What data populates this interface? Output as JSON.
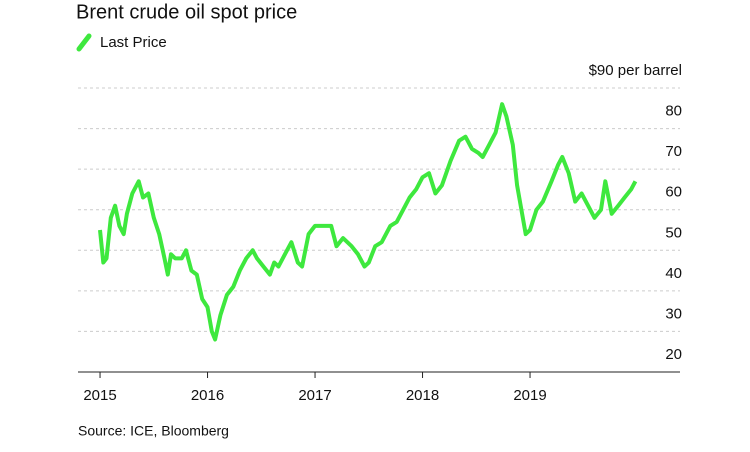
{
  "chart_data": {
    "type": "line",
    "title": "Brent crude oil spot price",
    "source": "Source: ICE, Bloomberg",
    "series": [
      {
        "name": "Last Price",
        "color": "#3ee83e",
        "x": [
          2015.0,
          2015.03,
          2015.06,
          2015.1,
          2015.14,
          2015.18,
          2015.22,
          2015.25,
          2015.3,
          2015.36,
          2015.4,
          2015.45,
          2015.5,
          2015.55,
          2015.6,
          2015.63,
          2015.66,
          2015.7,
          2015.76,
          2015.8,
          2015.85,
          2015.9,
          2015.95,
          2016.0,
          2016.04,
          2016.07,
          2016.12,
          2016.18,
          2016.24,
          2016.3,
          2016.36,
          2016.42,
          2016.46,
          2016.52,
          2016.58,
          2016.62,
          2016.66,
          2016.72,
          2016.78,
          2016.84,
          2016.88,
          2016.94,
          2017.0,
          2017.08,
          2017.15,
          2017.2,
          2017.26,
          2017.34,
          2017.4,
          2017.46,
          2017.5,
          2017.56,
          2017.62,
          2017.7,
          2017.76,
          2017.82,
          2017.88,
          2017.94,
          2018.0,
          2018.06,
          2018.12,
          2018.18,
          2018.26,
          2018.34,
          2018.4,
          2018.46,
          2018.52,
          2018.56,
          2018.62,
          2018.68,
          2018.74,
          2018.78,
          2018.84,
          2018.88,
          2018.92,
          2018.96,
          2019.0,
          2019.06,
          2019.12,
          2019.2,
          2019.26,
          2019.3,
          2019.36,
          2019.42,
          2019.48,
          2019.54,
          2019.6,
          2019.66,
          2019.7,
          2019.76,
          2019.82,
          2019.88,
          2019.94,
          2019.98
        ],
        "values": [
          55,
          47,
          48,
          58,
          61,
          56,
          54,
          59,
          64,
          67,
          63,
          64,
          58,
          54,
          48,
          44,
          49,
          48,
          48,
          50,
          45,
          44,
          38,
          36,
          30,
          28,
          34,
          39,
          41,
          45,
          48,
          50,
          48,
          46,
          44,
          47,
          46,
          49,
          52,
          47,
          46,
          54,
          56,
          56,
          56,
          51,
          53,
          51,
          49,
          46,
          47,
          51,
          52,
          56,
          57,
          60,
          63,
          65,
          68,
          69,
          64,
          66,
          72,
          77,
          78,
          75,
          74,
          73,
          76,
          79,
          86,
          83,
          76,
          66,
          60,
          54,
          55,
          60,
          62,
          67,
          71,
          73,
          69,
          62,
          64,
          61,
          58,
          60,
          67,
          59,
          61,
          63,
          65,
          67
        ]
      }
    ],
    "xlim": [
      2014.795,
      2020.395
    ],
    "xticks": [
      2015,
      2016,
      2017,
      2018,
      2019
    ],
    "ylim": [
      20,
      90
    ],
    "yticks": [
      20,
      30,
      40,
      50,
      60,
      70,
      80,
      {
        "value": 90,
        "label": "$90 per barrel"
      }
    ],
    "grid": true
  }
}
